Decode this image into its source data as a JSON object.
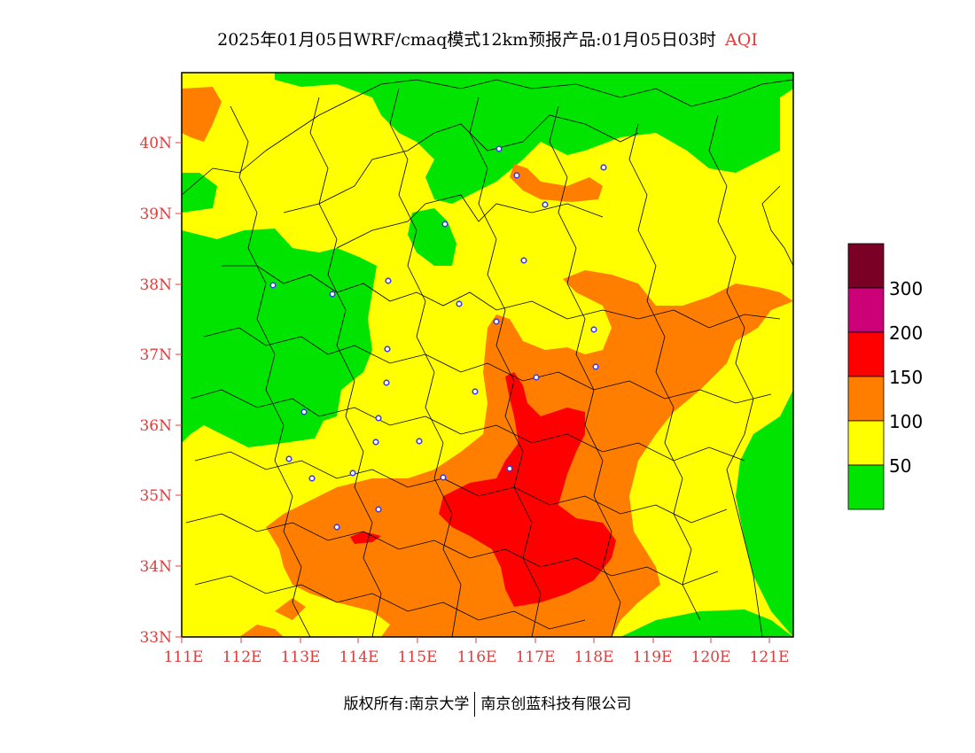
{
  "title": {
    "main": "2025年01月05日WRF/cmaq模式12km预报产品:01月05日03时",
    "variable": "AQI"
  },
  "axes": {
    "lat_labels": [
      "40N",
      "39N",
      "38N",
      "37N",
      "36N",
      "35N",
      "34N",
      "33N"
    ],
    "lon_labels": [
      "111E",
      "112E",
      "113E",
      "114E",
      "115E",
      "116E",
      "117E",
      "118E",
      "119E",
      "120E",
      "121E"
    ]
  },
  "legend": {
    "labels": [
      "300",
      "200",
      "150",
      "100",
      "50"
    ],
    "colors": [
      "#7b0026",
      "#cc0077",
      "#ff0000",
      "#ff7e00",
      "#ffff00",
      "#00e400"
    ]
  },
  "copyright": {
    "left": "版权所有:南京大学",
    "right": "南京创蓝科技有限公司"
  },
  "colors": {
    "good": "#00e400",
    "moderate": "#ffff00",
    "usg": "#ff7e00",
    "unhealthy": "#ff0000",
    "accent_text": "#e03c3c",
    "station_marker": "#3c3cf0"
  }
}
